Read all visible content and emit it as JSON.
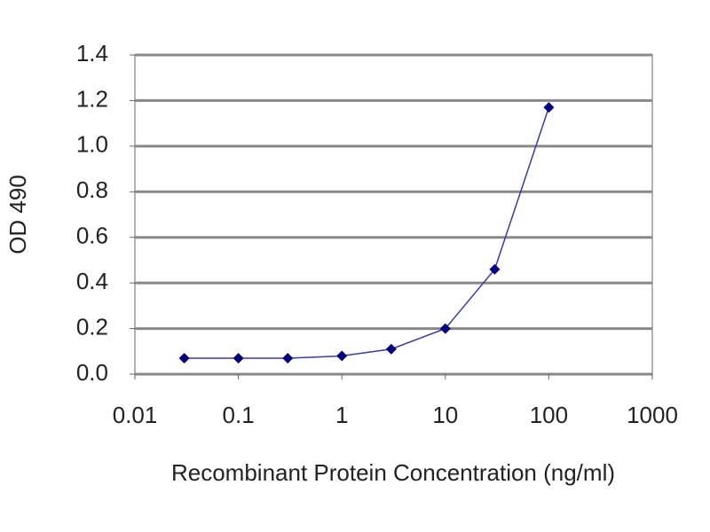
{
  "chart_data": {
    "type": "line",
    "x_label": "Recombinant Protein Concentration (ng/ml)",
    "y_label": "OD 490",
    "x": [
      0.03,
      0.1,
      0.3,
      1,
      3,
      10,
      30,
      100
    ],
    "series": [
      {
        "color": "#000080",
        "values": [
          0.07,
          0.07,
          0.07,
          0.08,
          0.11,
          0.2,
          0.46,
          1.17
        ]
      }
    ],
    "xlim": [
      0.01,
      1000
    ],
    "xticks": [
      0.01,
      0.1,
      1,
      10,
      100,
      1000
    ],
    "xscale": "log",
    "ylim": [
      0,
      1.4
    ],
    "yticks": [
      {
        "value": 0,
        "label": "0.0"
      },
      0.2,
      0.4,
      0.6,
      0.8,
      {
        "value": 1,
        "label": "1.0"
      },
      1.2,
      1.4
    ],
    "grid": true
  }
}
